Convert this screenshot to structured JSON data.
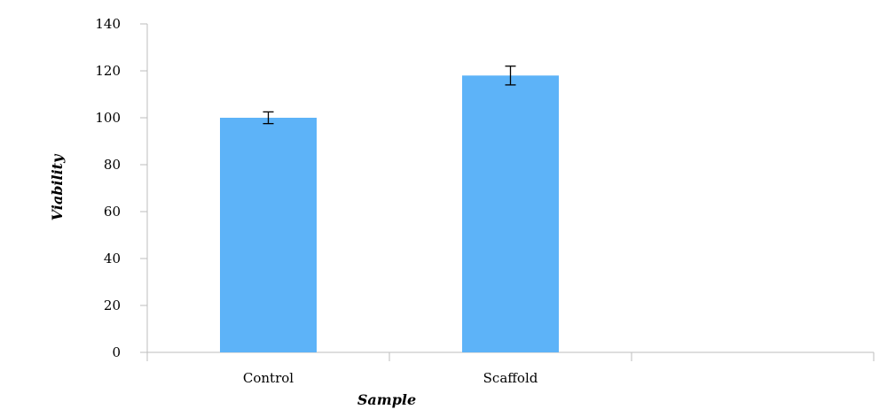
{
  "chart_data": {
    "type": "bar",
    "title": "",
    "xlabel": "Sample",
    "ylabel": "Viability",
    "categories": [
      "Control",
      "Scaffold"
    ],
    "values": [
      100,
      118
    ],
    "error": [
      2.5,
      4
    ],
    "ylim": [
      0,
      140
    ],
    "yticks": [
      0,
      20,
      40,
      60,
      80,
      100,
      120,
      140
    ],
    "category_slots": 3,
    "grid": false,
    "legend": "none",
    "bar_color": "#5db3f8",
    "axis_color": "#bdbdbd",
    "error_bar_color": "#000000"
  }
}
